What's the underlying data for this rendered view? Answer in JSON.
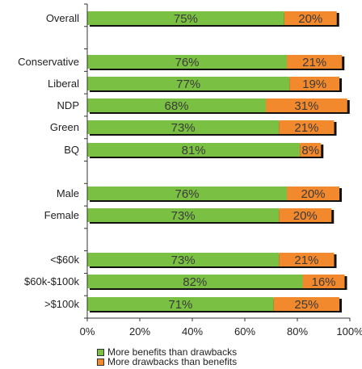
{
  "colors": {
    "benefits": "#7ac143",
    "drawbacks": "#f3892d",
    "shadow": "#111111",
    "axis": "#333333"
  },
  "legend": {
    "benefits_label": "More benefits than drawbacks",
    "drawbacks_label": "More drawbacks than benefits"
  },
  "chart_data": {
    "type": "bar",
    "orientation": "horizontal",
    "stacked": true,
    "xlim": [
      0,
      100
    ],
    "xticks": [
      "0%",
      "20%",
      "40%",
      "60%",
      "80%",
      "100%"
    ],
    "grid": false,
    "legend_position": "bottom",
    "categories": [
      "Overall",
      "Conservative",
      "Liberal",
      "NDP",
      "Green",
      "BQ",
      "Male",
      "Female",
      "<$60k",
      "$60k-$100k",
      ">$100k"
    ],
    "series": [
      {
        "name": "More benefits than drawbacks",
        "values": [
          75,
          76,
          77,
          68,
          73,
          81,
          76,
          73,
          73,
          82,
          71
        ],
        "labels": [
          "75%",
          "76%",
          "77%",
          "68%",
          "73%",
          "81%",
          "76%",
          "73%",
          "73%",
          "82%",
          "71%"
        ]
      },
      {
        "name": "More drawbacks than benefits",
        "values": [
          20,
          21,
          19,
          31,
          21,
          8,
          20,
          20,
          21,
          16,
          25
        ],
        "labels": [
          "20%",
          "21%",
          "19%",
          "31%",
          "21%",
          "8%",
          "20%",
          "20%",
          "21%",
          "16%",
          "25%"
        ]
      }
    ]
  }
}
